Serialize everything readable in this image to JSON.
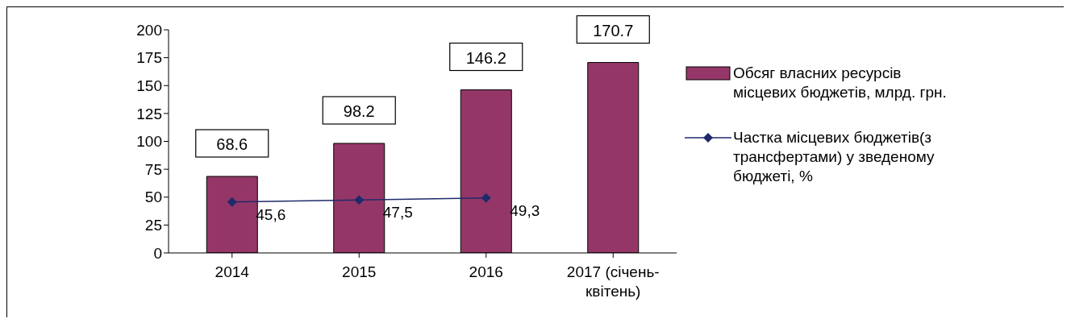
{
  "chart_data": {
    "type": "bar",
    "categories": [
      "2014",
      "2015",
      "2016",
      "2017 (січень-квітень)"
    ],
    "series": [
      {
        "name": "Обсяг власних ресурсів місцевих бюджетів, млрд. грн.",
        "color": "#943768",
        "values": [
          68.6,
          98.2,
          146.2,
          170.7
        ],
        "value_labels": [
          "68.6",
          "98.2",
          "146.2",
          "170.7"
        ]
      },
      {
        "type": "line",
        "name": "Частка місцевих бюджетів(з трансфертами) у зведеному бюджеті, %",
        "color": "#1f2a6b",
        "values": [
          45.6,
          47.5,
          49.3,
          null
        ],
        "value_labels": [
          "45,6",
          "47,5",
          "49,3",
          null
        ],
        "marker": "diamond"
      }
    ],
    "ylim": [
      0,
      200
    ],
    "yticks": [
      0,
      25,
      50,
      75,
      100,
      125,
      150,
      175,
      200
    ],
    "grid": false,
    "legend": "right"
  }
}
